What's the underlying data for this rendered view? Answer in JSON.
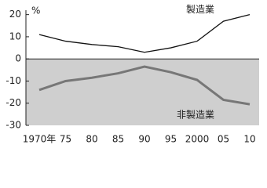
{
  "chart_data": {
    "type": "line",
    "y_unit": "%",
    "categories": [
      "1970年",
      "75",
      "80",
      "85",
      "90",
      "95",
      "2000",
      "05",
      "10"
    ],
    "series": [
      {
        "name": "製造業",
        "color": "#111111",
        "values": [
          11,
          8,
          6.5,
          5.5,
          3,
          5,
          8,
          17,
          20
        ]
      },
      {
        "name": "非製造業",
        "color": "#777777",
        "values": [
          -14,
          -10,
          -8.5,
          -6.5,
          -3.5,
          -6,
          -9.5,
          -18.5,
          -20.5
        ]
      }
    ],
    "ylim": [
      -30,
      22
    ],
    "yticks": [
      -30,
      -20,
      -10,
      0,
      10,
      20
    ],
    "negative_fill": "#cfcfcf",
    "grid": false
  }
}
